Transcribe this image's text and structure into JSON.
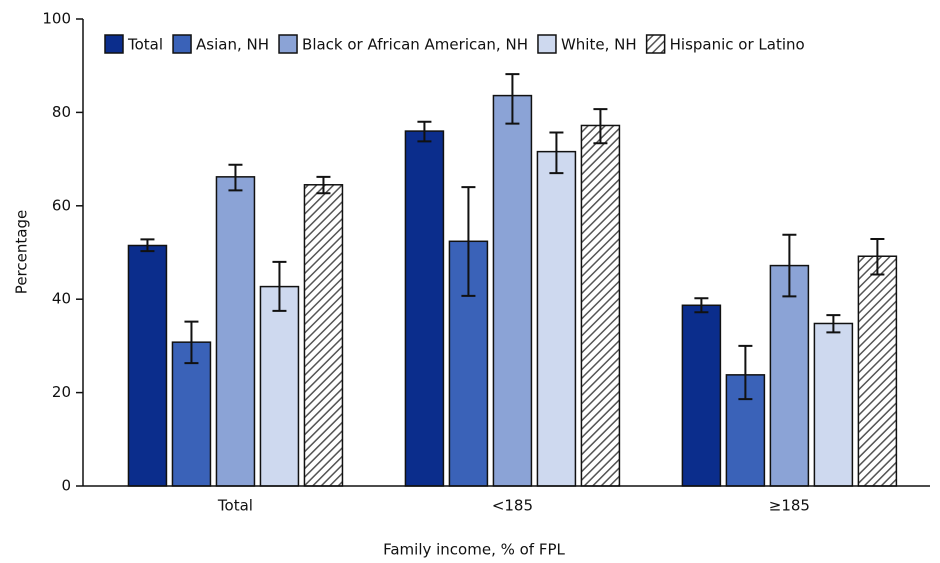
{
  "chart_data": {
    "type": "bar",
    "x_label": "Family income, % of FPL",
    "y_label": "Percentage",
    "categories": [
      "Total",
      "<185",
      "≥185"
    ],
    "ylim": [
      0,
      100
    ],
    "yticks": [
      0,
      20,
      40,
      60,
      80,
      100
    ],
    "legend": "top",
    "series": [
      {
        "name": "Total",
        "color": "#0b2d8c",
        "values": [
          51.5,
          76.0,
          38.7
        ],
        "lower": [
          50.3,
          73.8,
          37.2
        ],
        "upper": [
          52.8,
          78.0,
          40.2
        ]
      },
      {
        "name": "Asian, NH",
        "color": "#3a62b8",
        "values": [
          30.8,
          52.4,
          23.8
        ],
        "lower": [
          26.3,
          40.7,
          18.6
        ],
        "upper": [
          35.2,
          64.0,
          30.0
        ]
      },
      {
        "name": "Black or African American, NH",
        "color": "#8ba3d6",
        "values": [
          66.2,
          83.6,
          47.2
        ],
        "lower": [
          63.3,
          77.6,
          40.6
        ],
        "upper": [
          68.8,
          88.2,
          53.8
        ]
      },
      {
        "name": "White, NH",
        "color": "#ced9ef",
        "values": [
          42.7,
          71.6,
          34.8
        ],
        "lower": [
          37.5,
          67.0,
          32.9
        ],
        "upper": [
          48.0,
          75.7,
          36.6
        ]
      },
      {
        "name": "Hispanic or Latino",
        "color": "#555555",
        "pattern": "hatch",
        "values": [
          64.5,
          77.2,
          49.2
        ],
        "lower": [
          62.7,
          73.4,
          45.3
        ],
        "upper": [
          66.2,
          80.7,
          52.9
        ]
      }
    ]
  }
}
